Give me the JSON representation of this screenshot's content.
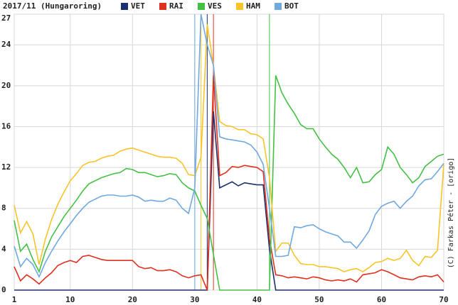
{
  "chart_data": {
    "type": "line",
    "title": "2017/11 (Hungaroring)",
    "annotation": "(C) Farkas Péter - [origo]",
    "x": [
      1,
      2,
      3,
      4,
      5,
      6,
      7,
      8,
      9,
      10,
      11,
      12,
      13,
      14,
      15,
      16,
      17,
      18,
      19,
      20,
      21,
      22,
      23,
      24,
      25,
      26,
      27,
      28,
      29,
      30,
      31,
      32,
      33,
      34,
      35,
      36,
      37,
      38,
      39,
      40,
      41,
      42,
      43,
      44,
      45,
      46,
      47,
      48,
      49,
      50,
      51,
      52,
      53,
      54,
      55,
      56,
      57,
      58,
      59,
      60,
      61,
      62,
      63,
      64,
      65,
      66,
      67,
      68,
      69,
      70
    ],
    "xlim": [
      1,
      70
    ],
    "xticks": [
      1,
      10,
      20,
      30,
      40,
      50,
      60,
      70
    ],
    "ylim": [
      0,
      27
    ],
    "yticks": [
      0,
      4,
      8,
      12,
      16,
      20,
      24,
      27
    ],
    "grid": true,
    "series": [
      {
        "name": "VET",
        "color": "#1c2f6e",
        "pit_lap": 32,
        "values": [
          0,
          0,
          0,
          0,
          0,
          0,
          0,
          0,
          0,
          0,
          0,
          0,
          0,
          0,
          0,
          0,
          0,
          0,
          0,
          0,
          0,
          0,
          0,
          0,
          0,
          0,
          0,
          0,
          0,
          0,
          0,
          0,
          17.5,
          10,
          10.3,
          10.6,
          10.2,
          10.5,
          10.4,
          10.3,
          10.3,
          4,
          0,
          0,
          0,
          0,
          0,
          0,
          0,
          0,
          0,
          0,
          0,
          0,
          0,
          0,
          0,
          0,
          0,
          0,
          0,
          0,
          0,
          0,
          0,
          0,
          0,
          0,
          0,
          0
        ]
      },
      {
        "name": "RAI",
        "color": "#e0301e",
        "pit_lap": 33,
        "values": [
          2.3,
          0.9,
          1.5,
          1.1,
          0.6,
          1.2,
          1.7,
          2.4,
          2.7,
          2.9,
          2.7,
          3.3,
          3.4,
          3.2,
          3.0,
          2.9,
          2.9,
          2.9,
          2.9,
          2.9,
          2.3,
          2.1,
          2.2,
          1.9,
          1.9,
          2.0,
          1.8,
          1.4,
          1.2,
          1.4,
          1.5,
          0,
          21,
          11.2,
          11.5,
          12.1,
          12.0,
          12.2,
          12.1,
          12.0,
          11.6,
          5,
          1.5,
          1.4,
          1.2,
          1.3,
          1.2,
          1.1,
          1.3,
          1.2,
          1.0,
          0.9,
          1.0,
          0.9,
          1.1,
          0.8,
          1.5,
          1.6,
          1.7,
          2.0,
          1.8,
          1.5,
          1.2,
          1.1,
          1.0,
          1.3,
          1.4,
          1.3,
          1.5,
          0.8
        ]
      },
      {
        "name": "VES",
        "color": "#44c044",
        "pit_lap": 42,
        "values": [
          6.8,
          3.8,
          4.5,
          3.0,
          1.8,
          3.8,
          5.2,
          6.2,
          7.2,
          8.0,
          8.8,
          9.7,
          10.4,
          10.7,
          11.0,
          11.2,
          11.4,
          11.5,
          11.9,
          11.8,
          11.5,
          11.5,
          11.3,
          11.1,
          11.2,
          11.4,
          11.3,
          10.5,
          10.0,
          9.7,
          8.3,
          7.0,
          3.5,
          0,
          0,
          0,
          0,
          0,
          0,
          0,
          0,
          0,
          21,
          19.3,
          18.2,
          17.3,
          16.2,
          15.8,
          15.8,
          14.8,
          14.0,
          13.3,
          12.8,
          12.0,
          11.0,
          12.0,
          10.5,
          10.6,
          11.3,
          11.8,
          14.0,
          13.3,
          12.0,
          11.3,
          10.5,
          11.0,
          12.1,
          12.6,
          13.1,
          13.3
        ]
      },
      {
        "name": "HAM",
        "color": "#f8c428",
        "pit_lap": 31,
        "values": [
          8.3,
          5.6,
          6.7,
          5.5,
          2.5,
          5.0,
          6.9,
          8.4,
          9.6,
          10.7,
          11.4,
          12.2,
          12.5,
          12.6,
          12.9,
          13.1,
          13.2,
          13.6,
          13.8,
          13.9,
          13.7,
          13.5,
          13.3,
          13.1,
          13.0,
          13.0,
          12.9,
          12.4,
          11.3,
          11.2,
          13.0,
          26,
          22,
          16.5,
          16.1,
          16.0,
          15.7,
          15.7,
          15.3,
          15.2,
          14.8,
          11.0,
          3.8,
          4.6,
          4.6,
          3.4,
          2.6,
          2.5,
          2.5,
          2.3,
          2.3,
          2.2,
          2.1,
          1.8,
          2.0,
          2.1,
          1.8,
          2.2,
          2.7,
          2.8,
          3.1,
          2.9,
          3.1,
          3.9,
          2.9,
          2.4,
          3.3,
          3.2,
          3.9,
          12.3
        ]
      },
      {
        "name": "BOT",
        "color": "#70a8e0",
        "pit_lap": 30,
        "values": [
          4.3,
          2.3,
          3.1,
          2.5,
          1.3,
          2.7,
          3.8,
          4.8,
          5.7,
          6.5,
          7.3,
          8.0,
          8.6,
          8.9,
          9.2,
          9.3,
          9.3,
          9.2,
          9.2,
          9.3,
          9.1,
          8.7,
          8.8,
          8.7,
          8.7,
          9.0,
          8.8,
          8.0,
          7.5,
          10,
          27,
          24,
          22,
          15,
          14.8,
          14.7,
          14.6,
          14.5,
          14.2,
          13.5,
          12.3,
          8,
          3.3,
          3.3,
          3.4,
          6.2,
          6.1,
          6.3,
          6.4,
          6.0,
          5.7,
          5.5,
          5.3,
          4.7,
          4.7,
          4.1,
          4.9,
          5.8,
          7.4,
          8.2,
          8.5,
          8.7,
          8.0,
          8.7,
          9.2,
          10.2,
          10.8,
          10.9,
          11.6,
          12.4
        ]
      }
    ]
  }
}
